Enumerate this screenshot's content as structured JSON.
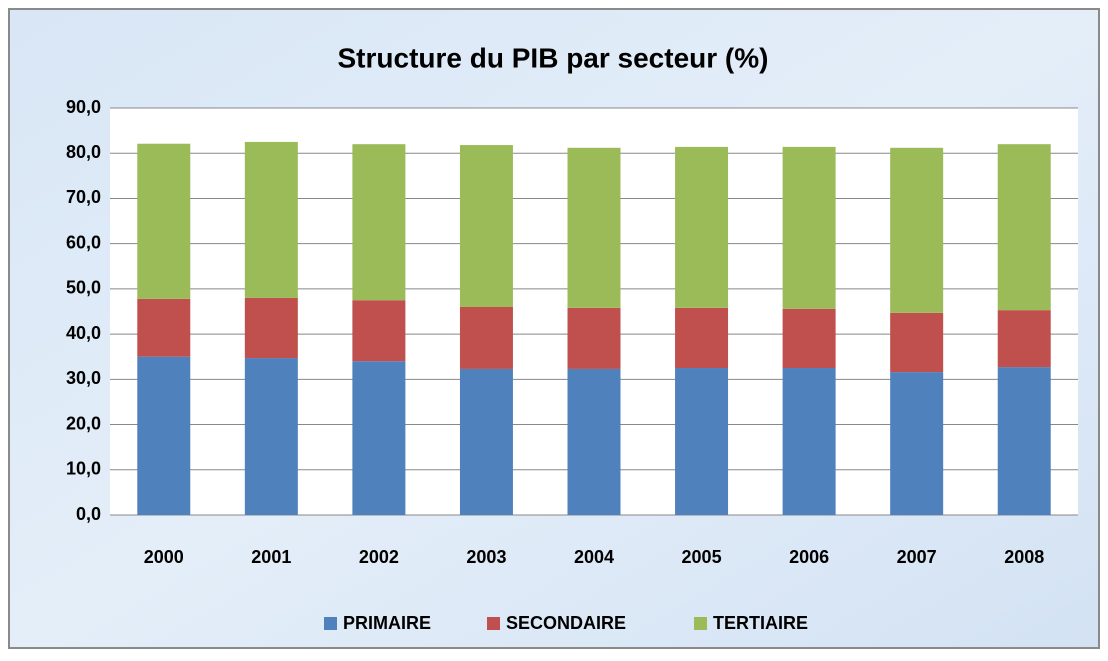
{
  "chart_data": {
    "type": "stacked_bar",
    "title": "Structure du PIB par secteur (%)",
    "categories": [
      "2000",
      "2001",
      "2002",
      "2003",
      "2004",
      "2005",
      "2006",
      "2007",
      "2008"
    ],
    "series": [
      {
        "name": "PRIMAIRE",
        "color": "#4f81bd",
        "values": [
          35.0,
          34.7,
          34.0,
          32.3,
          32.3,
          32.5,
          32.5,
          31.6,
          32.7
        ]
      },
      {
        "name": "SECONDAIRE",
        "color": "#c0504d",
        "values": [
          12.8,
          13.3,
          13.5,
          13.7,
          13.5,
          13.3,
          13.1,
          13.1,
          12.6
        ]
      },
      {
        "name": "TERTIAIRE",
        "color": "#9bbb59",
        "values": [
          34.3,
          34.5,
          34.5,
          35.8,
          35.4,
          35.6,
          35.8,
          36.5,
          36.7
        ]
      }
    ],
    "ylim": [
      0,
      90
    ],
    "yticks": [
      {
        "value": 0,
        "label": "0,0"
      },
      {
        "value": 10,
        "label": "10,0"
      },
      {
        "value": 20,
        "label": "20,0"
      },
      {
        "value": 30,
        "label": "30,0"
      },
      {
        "value": 40,
        "label": "40,0"
      },
      {
        "value": 50,
        "label": "50,0"
      },
      {
        "value": 60,
        "label": "60,0"
      },
      {
        "value": 70,
        "label": "70,0"
      },
      {
        "value": 80,
        "label": "80,0"
      },
      {
        "value": 90,
        "label": "90,0"
      }
    ],
    "grid": true,
    "legend": "bottom"
  }
}
